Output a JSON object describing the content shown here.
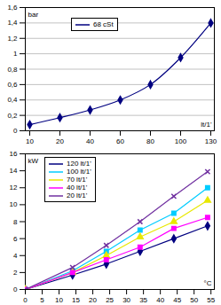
{
  "chart_data": [
    {
      "type": "line",
      "categories": [
        10,
        20,
        40,
        60,
        80,
        100,
        130
      ],
      "x_label": "lt/1'",
      "y_label": "bar",
      "series": [
        {
          "name": "68 cSt",
          "color": "#000080",
          "marker": "diamond",
          "line_style": "solid",
          "values": [
            0.08,
            0.17,
            0.27,
            0.4,
            0.6,
            0.95,
            1.4
          ]
        }
      ],
      "ylim": [
        0,
        1.6
      ],
      "yticks": [
        0,
        {
          "value": 0.2,
          "label": "0,2"
        },
        {
          "value": 0.4,
          "label": "0,4"
        },
        {
          "value": 0.6,
          "label": "0,6"
        },
        {
          "value": 0.8,
          "label": "0,8"
        },
        1,
        {
          "value": 1.2,
          "label": "1,2"
        },
        {
          "value": 1.4,
          "label": "1,4"
        },
        {
          "value": 1.6,
          "label": "1,6"
        }
      ],
      "grid": true,
      "legend": "top"
    },
    {
      "type": "line",
      "x": [
        0,
        14,
        24,
        34,
        44,
        54
      ],
      "x_label": "°C",
      "y_label": "kW",
      "series": [
        {
          "name": "120 lt/1'",
          "color": "#000080",
          "marker": "diamond",
          "line_style": "solid",
          "values": [
            0,
            1.7,
            3,
            4.5,
            6,
            7.5
          ]
        },
        {
          "name": "100 lt/1'",
          "color": "#00ccff",
          "marker": "square",
          "line_style": "solid",
          "values": [
            0,
            2.2,
            4.5,
            7,
            9,
            12
          ]
        },
        {
          "name": "70 lt/1'",
          "color": "#e8e800",
          "marker": "triangle",
          "line_style": "solid",
          "values": [
            0,
            2,
            4,
            6.2,
            8,
            10.5
          ]
        },
        {
          "name": "40 lt/1'",
          "color": "#ff00ff",
          "marker": "square",
          "line_style": "solid",
          "values": [
            0,
            2,
            3.5,
            5,
            7.2,
            8.5
          ]
        },
        {
          "name": "20 lt/1'",
          "color": "#7030a0",
          "marker": "x",
          "line_style": "solid",
          "values": [
            0,
            2.6,
            5.2,
            8,
            11,
            13.9
          ]
        }
      ],
      "xlim": [
        0,
        56
      ],
      "xticks": [
        0,
        5,
        10,
        15,
        20,
        25,
        30,
        35,
        40,
        45,
        50,
        55
      ],
      "ylim": [
        0,
        16
      ],
      "yticks": [
        0,
        2,
        4,
        6,
        8,
        10,
        12,
        14,
        16
      ],
      "grid": false,
      "legend": "top-left"
    }
  ]
}
